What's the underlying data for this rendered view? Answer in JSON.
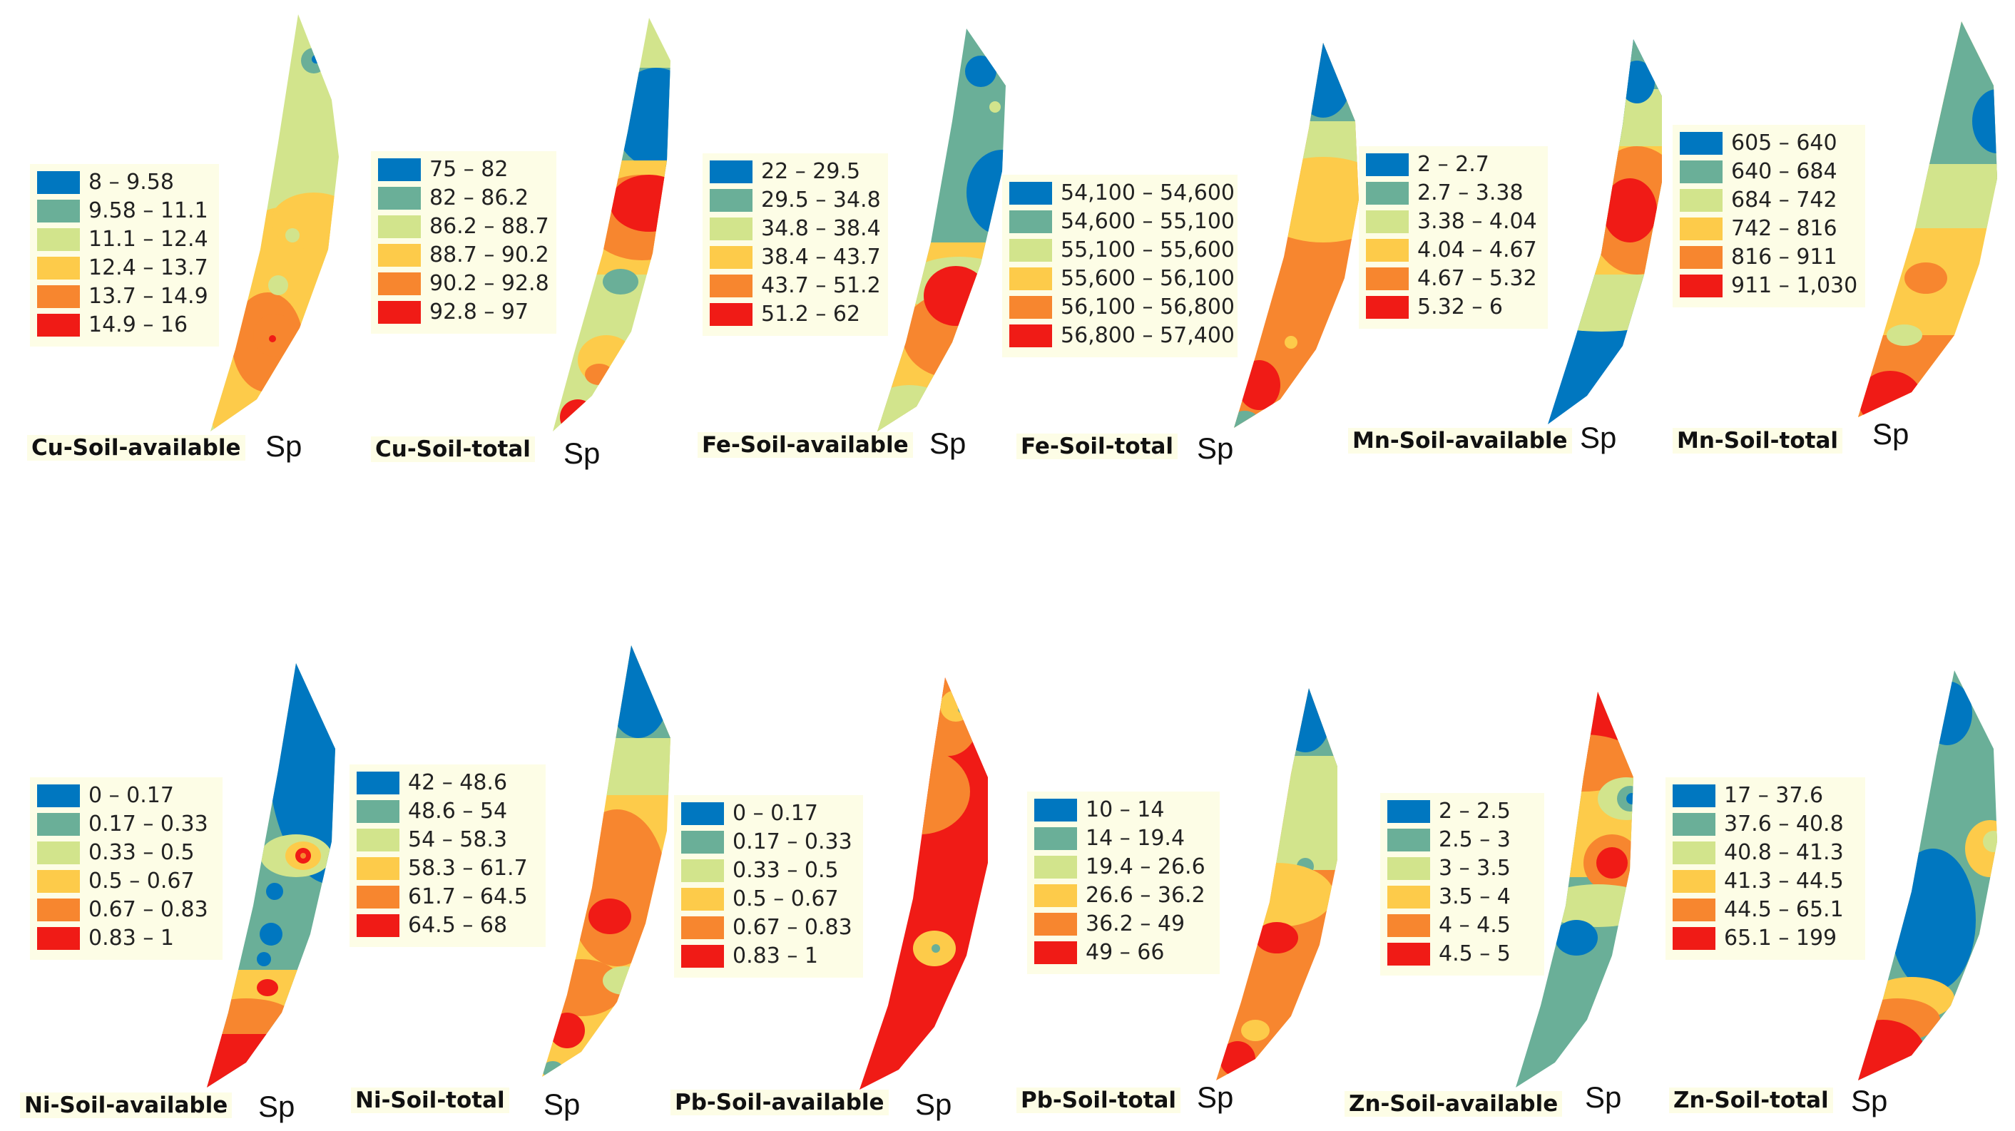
{
  "colors": [
    "#0077c0",
    "#6aaf98",
    "#d2e48c",
    "#fdcb4a",
    "#f7862f",
    "#f01b16"
  ],
  "sp_label": "Sp",
  "panels": [
    {
      "title": "Cu-Soil-available",
      "classes": [
        "8 – 9.58",
        "9.58 – 11.1",
        "11.1 – 12.4",
        "12.4 – 13.7",
        "13.7 – 14.9",
        "14.9 – 16"
      ]
    },
    {
      "title": "Cu-Soil-total",
      "classes": [
        "75 – 82",
        "82 – 86.2",
        "86.2 – 88.7",
        "88.7 – 90.2",
        "90.2 – 92.8",
        "92.8 – 97"
      ]
    },
    {
      "title": "Fe-Soil-available",
      "classes": [
        "22 – 29.5",
        "29.5 – 34.8",
        "34.8 – 38.4",
        "38.4 – 43.7",
        "43.7 – 51.2",
        "51.2 – 62"
      ]
    },
    {
      "title": "Fe-Soil-total",
      "classes": [
        "54,100 – 54,600",
        "54,600 – 55,100",
        "55,100 – 55,600",
        "55,600 – 56,100",
        "56,100 – 56,800",
        "56,800 – 57,400"
      ]
    },
    {
      "title": "Mn-Soil-available",
      "classes": [
        "2 – 2.7",
        "2.7 – 3.38",
        "3.38 – 4.04",
        "4.04 – 4.67",
        "4.67 – 5.32",
        "5.32 – 6"
      ]
    },
    {
      "title": "Mn-Soil-total",
      "classes": [
        "605 – 640",
        "640 – 684",
        "684 – 742",
        "742 – 816",
        "816 – 911",
        "911 – 1,030"
      ]
    },
    {
      "title": "Ni-Soil-available",
      "classes": [
        "0 – 0.17",
        "0.17 – 0.33",
        "0.33 – 0.5",
        "0.5 – 0.67",
        "0.67 – 0.83",
        "0.83 – 1"
      ]
    },
    {
      "title": "Ni-Soil-total",
      "classes": [
        "42 – 48.6",
        "48.6 – 54",
        "54 – 58.3",
        "58.3 – 61.7",
        "61.7 – 64.5",
        "64.5 – 68"
      ]
    },
    {
      "title": "Pb-Soil-available",
      "classes": [
        "0 – 0.17",
        "0.17 – 0.33",
        "0.33 – 0.5",
        "0.5 – 0.67",
        "0.67 – 0.83",
        "0.83 – 1"
      ]
    },
    {
      "title": "Pb-Soil-total",
      "classes": [
        "10 – 14",
        "14 – 19.4",
        "19.4 – 26.6",
        "26.6 – 36.2",
        "36.2 – 49",
        "49 – 66"
      ]
    },
    {
      "title": "Zn-Soil-available",
      "classes": [
        "2 – 2.5",
        "2.5 – 3",
        "3 – 3.5",
        "3.5 – 4",
        "4 – 4.5",
        "4.5 – 5"
      ]
    },
    {
      "title": "Zn-Soil-total",
      "classes": [
        "17 – 37.6",
        "37.6 – 40.8",
        "40.8 – 41.3",
        "41.3 – 44.5",
        "44.5 – 65.1",
        "65.1 – 199"
      ]
    }
  ]
}
